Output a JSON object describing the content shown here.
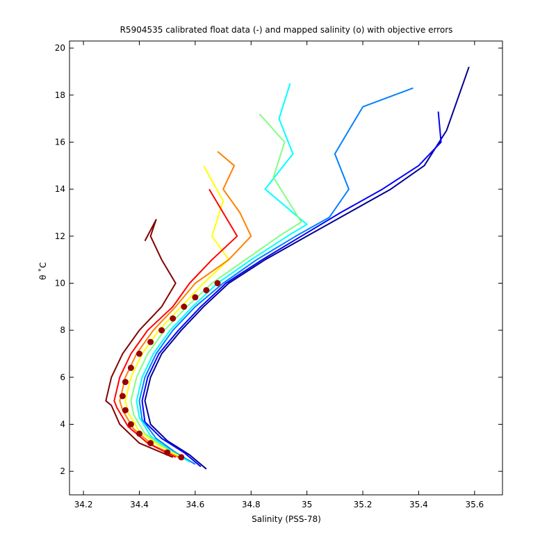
{
  "chart_data": {
    "type": "line",
    "title": "R5904535 calibrated float data (-) and mapped salinity (o) with objective errors",
    "xlabel": "Salinity (PSS-78)",
    "ylabel": "θ ˚C",
    "xlim": [
      34.15,
      35.7
    ],
    "ylim": [
      1.0,
      20.3
    ],
    "xticks": [
      34.2,
      34.4,
      34.6,
      34.8,
      35,
      35.2,
      35.4,
      35.6
    ],
    "yticks": [
      2,
      4,
      6,
      8,
      10,
      12,
      14,
      16,
      18,
      20
    ],
    "xtick_labels": [
      "34.2",
      "34.4",
      "34.6",
      "34.8",
      "35",
      "35.2",
      "35.4",
      "35.6"
    ],
    "ytick_labels": [
      "2",
      "4",
      "6",
      "8",
      "10",
      "12",
      "14",
      "16",
      "18",
      "20"
    ],
    "grid": false,
    "legend": "none",
    "colormap": "jet",
    "colors": [
      "#00008f",
      "#0000ff",
      "#0080ff",
      "#00ffff",
      "#80ff80",
      "#ffff00",
      "#ff8000",
      "#ff0000",
      "#800000"
    ],
    "series": [
      {
        "color": "#00008f",
        "x": [
          34.64,
          34.58,
          34.5,
          34.44,
          34.42,
          34.44,
          34.48,
          34.55,
          34.63,
          34.72,
          34.85,
          35.0,
          35.15,
          35.3,
          35.42,
          35.5,
          35.58
        ],
        "y": [
          2.1,
          2.7,
          3.3,
          4.0,
          5.0,
          6.0,
          7.0,
          8.0,
          9.0,
          10.0,
          11.0,
          12.0,
          13.0,
          14.0,
          15.0,
          16.5,
          19.2
        ]
      },
      {
        "color": "#0000ff",
        "x": [
          34.62,
          34.56,
          34.48,
          34.42,
          34.41,
          34.43,
          34.47,
          34.54,
          34.62,
          34.71,
          34.84,
          34.98,
          35.12,
          35.27,
          35.4,
          35.48,
          35.47
        ],
        "y": [
          2.2,
          2.8,
          3.4,
          4.1,
          5.0,
          6.0,
          7.0,
          8.0,
          9.0,
          10.0,
          11.0,
          12.0,
          13.0,
          14.0,
          15.0,
          16.0,
          17.3
        ]
      },
      {
        "color": "#0080ff",
        "x": [
          34.6,
          34.53,
          34.46,
          34.41,
          34.4,
          34.42,
          34.46,
          34.52,
          34.6,
          34.7,
          34.82,
          34.96,
          35.08,
          35.15,
          35.1,
          35.2,
          35.38
        ],
        "y": [
          2.3,
          2.8,
          3.4,
          4.2,
          5.0,
          6.0,
          7.0,
          8.0,
          9.0,
          10.0,
          11.0,
          12.0,
          12.8,
          14.0,
          15.5,
          17.5,
          18.3
        ]
      },
      {
        "color": "#00ffff",
        "x": [
          34.58,
          34.51,
          34.44,
          34.4,
          34.39,
          34.41,
          34.45,
          34.51,
          34.59,
          34.68,
          34.8,
          34.93,
          35.0,
          34.85,
          34.95,
          34.9,
          34.94
        ],
        "y": [
          2.4,
          2.9,
          3.5,
          4.3,
          5.0,
          6.0,
          7.0,
          8.0,
          9.0,
          10.0,
          11.0,
          12.0,
          12.5,
          14.0,
          15.5,
          17.0,
          18.5
        ]
      },
      {
        "color": "#80ff80",
        "x": [
          34.56,
          34.49,
          34.42,
          34.38,
          34.37,
          34.39,
          34.43,
          34.49,
          34.57,
          34.66,
          34.78,
          34.9,
          34.98,
          34.88,
          34.92,
          34.83
        ],
        "y": [
          2.5,
          3.0,
          3.6,
          4.4,
          5.0,
          6.0,
          7.0,
          8.0,
          9.0,
          10.0,
          11.0,
          12.0,
          12.6,
          14.5,
          16.0,
          17.2
        ]
      },
      {
        "color": "#ffff00",
        "x": [
          34.55,
          34.47,
          34.4,
          34.36,
          34.35,
          34.37,
          34.41,
          34.47,
          34.55,
          34.63,
          34.72,
          34.66,
          34.7,
          34.63
        ],
        "y": [
          2.6,
          3.1,
          3.7,
          4.5,
          5.0,
          6.0,
          7.0,
          8.0,
          9.0,
          10.0,
          11.0,
          12.0,
          13.5,
          15.0
        ]
      },
      {
        "color": "#ff8000",
        "x": [
          34.54,
          34.45,
          34.38,
          34.34,
          34.33,
          34.35,
          34.39,
          34.45,
          34.53,
          34.6,
          34.72,
          34.8,
          34.76,
          34.7,
          34.74,
          34.68
        ],
        "y": [
          2.6,
          3.1,
          3.8,
          4.6,
          5.0,
          6.0,
          7.0,
          8.0,
          9.0,
          10.0,
          11.0,
          12.0,
          13.0,
          14.0,
          15.0,
          15.6
        ]
      },
      {
        "color": "#ff0000",
        "x": [
          34.53,
          34.43,
          34.36,
          34.32,
          34.31,
          34.33,
          34.37,
          34.43,
          34.52,
          34.58,
          34.66,
          34.75,
          34.7,
          34.65
        ],
        "y": [
          2.6,
          3.2,
          3.9,
          4.7,
          5.0,
          6.0,
          7.0,
          8.0,
          9.0,
          10.0,
          11.0,
          12.0,
          13.0,
          14.0
        ]
      },
      {
        "color": "#800000",
        "x": [
          34.52,
          34.4,
          34.33,
          34.3,
          34.28,
          34.3,
          34.34,
          34.4,
          34.48,
          34.53,
          34.48,
          34.44,
          34.46,
          34.42
        ],
        "y": [
          2.6,
          3.2,
          4.0,
          4.8,
          5.0,
          6.0,
          7.0,
          8.0,
          9.0,
          10.0,
          11.0,
          12.0,
          12.7,
          11.8
        ]
      }
    ],
    "mapped_points": {
      "color": "#990000",
      "x": [
        34.55,
        34.5,
        34.44,
        34.4,
        34.37,
        34.35,
        34.34,
        34.35,
        34.37,
        34.4,
        34.44,
        34.48,
        34.52,
        34.56,
        34.6,
        34.64,
        34.68
      ],
      "y": [
        2.6,
        2.8,
        3.2,
        3.6,
        4.0,
        4.6,
        5.2,
        5.8,
        6.4,
        7.0,
        7.5,
        8.0,
        8.5,
        9.0,
        9.4,
        9.7,
        10.0
      ]
    }
  }
}
